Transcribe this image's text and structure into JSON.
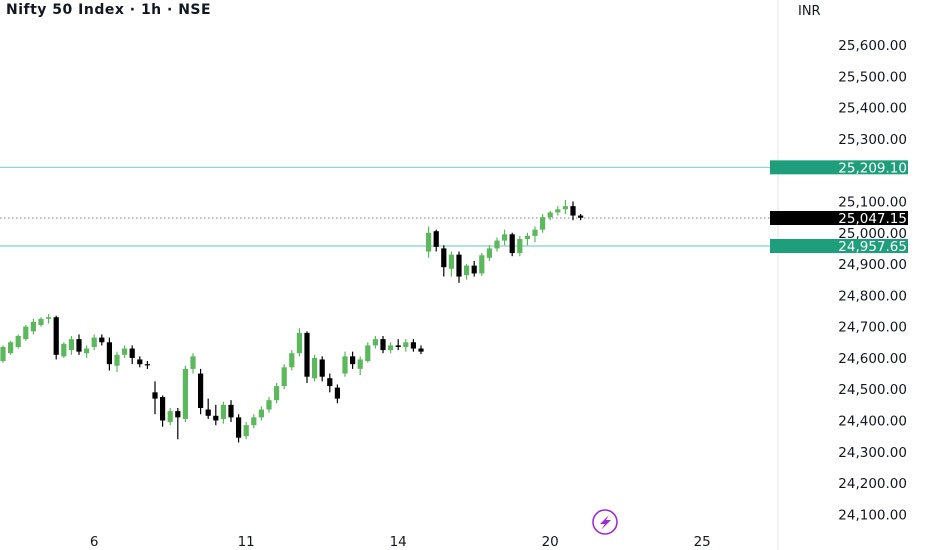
{
  "header": {
    "title": "Nifty 50 Index · 1h · NSE",
    "currency": "INR"
  },
  "colors": {
    "up": "#5cb85c",
    "down": "#000000",
    "level_line": "#7fd3c2",
    "level_label_bg": "#1e9e7a",
    "price_label_bg": "#000000",
    "axis_text": "#131722"
  },
  "icons": {
    "bottom_logo": "lightning-bolt-icon"
  },
  "chart_data": {
    "type": "candlestick",
    "y_axis": {
      "ylim": [
        24050,
        25680
      ],
      "ticks": [
        24100,
        24200,
        24300,
        24400,
        24500,
        24600,
        24700,
        24800,
        24900,
        25000,
        25100,
        25300,
        25400,
        25500,
        25600
      ],
      "tick_labels": [
        "24,100.00",
        "24,200.00",
        "24,300.00",
        "24,400.00",
        "24,500.00",
        "24,600.00",
        "24,700.00",
        "24,800.00",
        "24,900.00",
        "25,000.00",
        "25,100.00",
        "25,300.00",
        "25,400.00",
        "25,500.00",
        "25,600.00"
      ]
    },
    "x_axis": {
      "tick_labels": [
        "6",
        "11",
        "14",
        "20",
        "25"
      ],
      "tick_index": [
        12,
        32,
        52,
        72,
        92
      ]
    },
    "horizontal_levels": [
      {
        "value": 25209.1,
        "label": "25,209.10"
      },
      {
        "value": 24957.65,
        "label": "24,957.65"
      }
    ],
    "last_price": {
      "value": 25047.15,
      "label": "25,047.15"
    },
    "candles": [
      [
        24590,
        24640,
        24585,
        24635
      ],
      [
        24615,
        24655,
        24610,
        24650
      ],
      [
        24635,
        24675,
        24630,
        24670
      ],
      [
        24660,
        24705,
        24655,
        24700
      ],
      [
        24685,
        24725,
        24675,
        24715
      ],
      [
        24705,
        24730,
        24700,
        24725
      ],
      [
        24725,
        24740,
        24710,
        24730
      ],
      [
        24730,
        24735,
        24595,
        24610
      ],
      [
        24605,
        24650,
        24600,
        24645
      ],
      [
        24625,
        24670,
        24610,
        24660
      ],
      [
        24660,
        24675,
        24610,
        24620
      ],
      [
        24615,
        24640,
        24600,
        24630
      ],
      [
        24635,
        24675,
        24625,
        24665
      ],
      [
        24665,
        24675,
        24640,
        24650
      ],
      [
        24650,
        24665,
        24560,
        24580
      ],
      [
        24575,
        24620,
        24555,
        24610
      ],
      [
        24610,
        24640,
        24600,
        24630
      ],
      [
        24630,
        24640,
        24580,
        24600
      ],
      [
        24595,
        24605,
        24570,
        24580
      ],
      [
        24580,
        24590,
        24565,
        24578
      ],
      [
        24490,
        24525,
        24420,
        24470
      ],
      [
        24475,
        24480,
        24380,
        24400
      ],
      [
        24395,
        24440,
        24385,
        24430
      ],
      [
        24430,
        24440,
        24340,
        24410
      ],
      [
        24405,
        24575,
        24395,
        24565
      ],
      [
        24565,
        24615,
        24550,
        24605
      ],
      [
        24550,
        24565,
        24420,
        24440
      ],
      [
        24435,
        24470,
        24405,
        24415
      ],
      [
        24415,
        24450,
        24385,
        24400
      ],
      [
        24405,
        24460,
        24390,
        24450
      ],
      [
        24450,
        24465,
        24395,
        24410
      ],
      [
        24410,
        24420,
        24330,
        24345
      ],
      [
        24350,
        24395,
        24340,
        24385
      ],
      [
        24385,
        24420,
        24375,
        24410
      ],
      [
        24410,
        24445,
        24400,
        24435
      ],
      [
        24435,
        24475,
        24425,
        24465
      ],
      [
        24465,
        24520,
        24455,
        24510
      ],
      [
        24510,
        24580,
        24500,
        24570
      ],
      [
        24570,
        24625,
        24560,
        24615
      ],
      [
        24615,
        24695,
        24605,
        24680
      ],
      [
        24680,
        24685,
        24520,
        24540
      ],
      [
        24535,
        24610,
        24525,
        24600
      ],
      [
        24595,
        24605,
        24525,
        24540
      ],
      [
        24535,
        24550,
        24490,
        24510
      ],
      [
        24505,
        24515,
        24455,
        24470
      ],
      [
        24550,
        24620,
        24540,
        24605
      ],
      [
        24605,
        24620,
        24565,
        24580
      ],
      [
        24565,
        24605,
        24545,
        24595
      ],
      [
        24590,
        24650,
        24585,
        24640
      ],
      [
        24640,
        24670,
        24630,
        24660
      ],
      [
        24660,
        24670,
        24615,
        24625
      ],
      [
        24625,
        24650,
        24615,
        24640
      ],
      [
        24640,
        24660,
        24625,
        24635
      ],
      [
        24635,
        24660,
        24620,
        24650
      ],
      [
        24650,
        24660,
        24620,
        24630
      ],
      [
        24630,
        24640,
        24612,
        24620
      ],
      [
        24940,
        25020,
        24920,
        25000
      ],
      [
        25005,
        25010,
        24940,
        24955
      ],
      [
        24950,
        24960,
        24860,
        24890
      ],
      [
        24885,
        24940,
        24860,
        24930
      ],
      [
        24930,
        24940,
        24840,
        24860
      ],
      [
        24865,
        24900,
        24850,
        24895
      ],
      [
        24895,
        24910,
        24860,
        24870
      ],
      [
        24870,
        24935,
        24862,
        24928
      ],
      [
        24920,
        24960,
        24910,
        24950
      ],
      [
        24950,
        24985,
        24940,
        24975
      ],
      [
        24975,
        25010,
        24960,
        24995
      ],
      [
        24995,
        25000,
        24925,
        24935
      ],
      [
        24935,
        24990,
        24925,
        24980
      ],
      [
        24980,
        25000,
        24960,
        24990
      ],
      [
        24990,
        25020,
        24970,
        25010
      ],
      [
        25010,
        25060,
        25000,
        25050
      ],
      [
        25050,
        25070,
        25040,
        25065
      ],
      [
        25065,
        25085,
        25055,
        25075
      ],
      [
        25075,
        25105,
        25060,
        25085
      ],
      [
        25085,
        25100,
        25040,
        25055
      ],
      [
        25055,
        25060,
        25040,
        25048
      ]
    ]
  }
}
